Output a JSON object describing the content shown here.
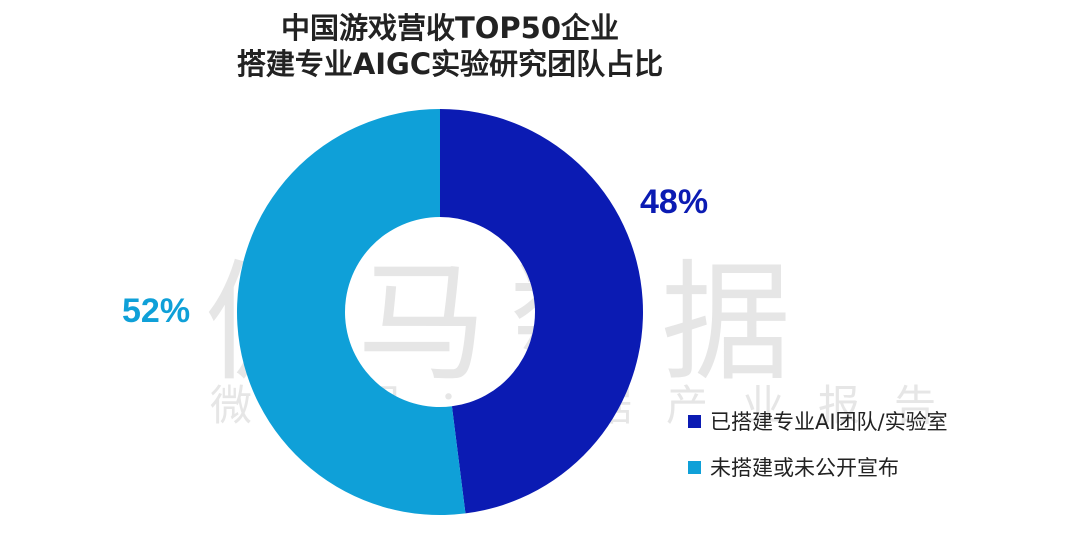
{
  "watermark": {
    "main": "伽马数据",
    "sub": "微信号：数据产业报告"
  },
  "chart_data": {
    "type": "pie",
    "title": "中国游戏营收TOP50企业",
    "subtitle": "搭建专业AIGC实验研究团队占比",
    "donut": true,
    "legend_position": "right-bottom",
    "slices": [
      {
        "label": "已搭建专业AI团队/实验室",
        "value": 48,
        "value_label": "48%",
        "color": "#0b1bb3"
      },
      {
        "label": "未搭建或未公开宣布",
        "value": 52,
        "value_label": "52%",
        "color": "#0fa0d8"
      }
    ]
  }
}
